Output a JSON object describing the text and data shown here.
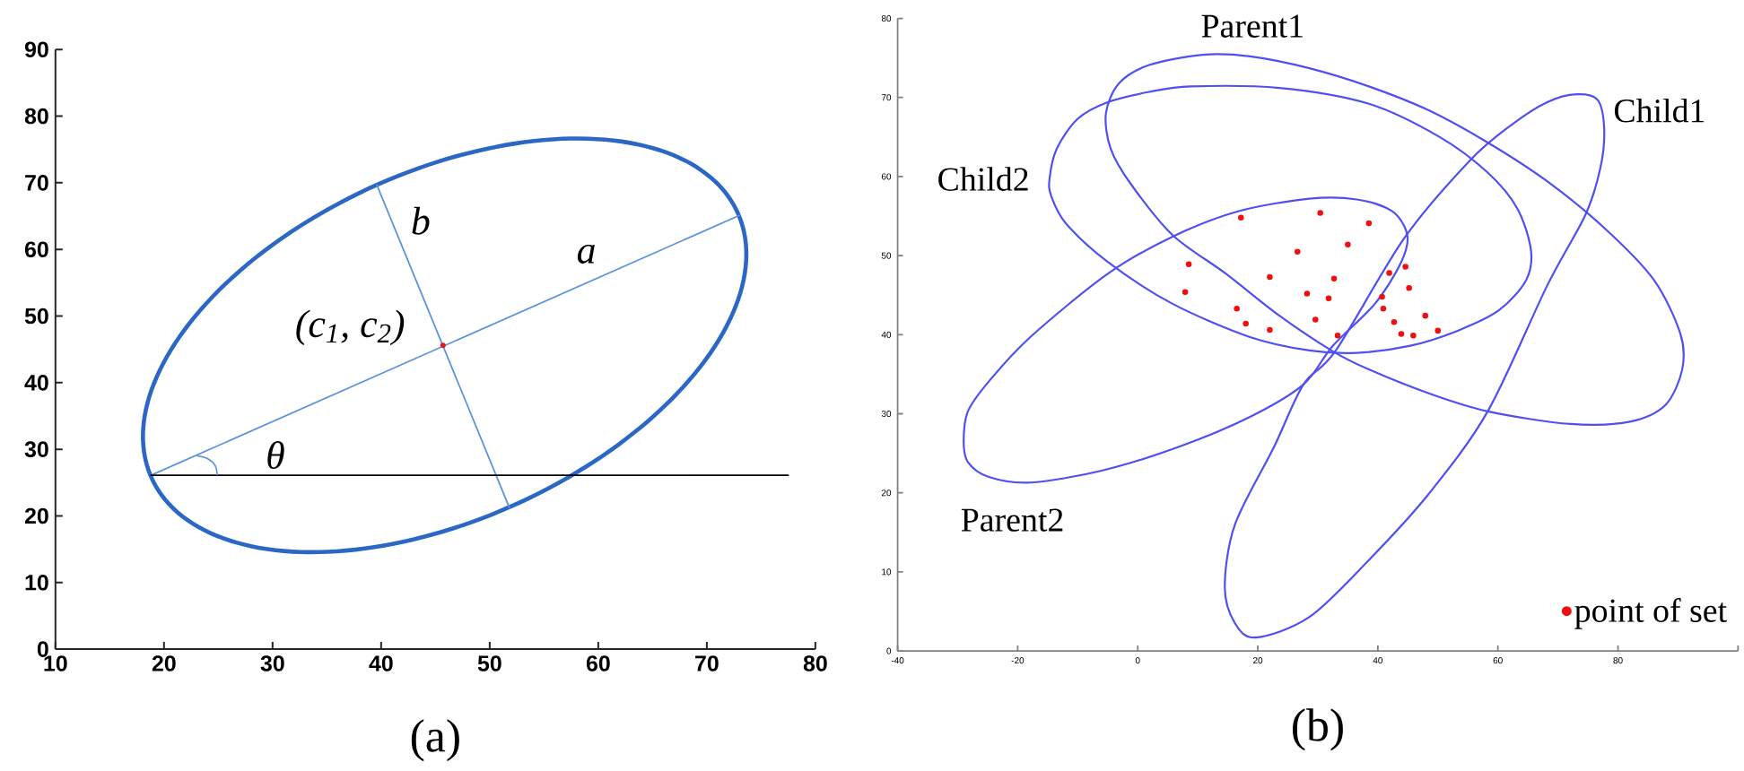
{
  "chart_data": [
    {
      "type": "line",
      "xlim": [
        10,
        80
      ],
      "ylim": [
        0,
        90
      ],
      "xticks": [
        10,
        20,
        30,
        40,
        50,
        60,
        70,
        80
      ],
      "yticks": [
        0,
        10,
        20,
        30,
        40,
        50,
        60,
        70,
        80,
        90
      ],
      "annotations": [
        {
          "text": "b",
          "x": 41.0,
          "y": 64.3
        },
        {
          "text": "a",
          "x": 58.9,
          "y": 55.0
        },
        {
          "text": "(c$_{1}$, c$_{2}$)",
          "x": 45.7,
          "y": 45.6
        },
        {
          "text": "θ",
          "x": 24.0,
          "y": 28.6
        },
        "(a)"
      ],
      "series": [
        {
          "color": "#5b93dc",
          "x": [
            18.8,
            73.0
          ],
          "values": [
            26.1,
            65.1
          ]
        },
        {
          "color": "#5b93dc",
          "x": [
            39.6,
            51.8
          ],
          "values": [
            69.7,
            21.3
          ]
        },
        {
          "color": "#000000",
          "x": [
            18.8,
            77.5
          ],
          "values": [
            26.1,
            26.1
          ]
        },
        {
          "color": "#5b93dc",
          "x": [
            24.9,
            24.7,
            24.0,
            23.1
          ],
          "values": [
            26.2,
            27.6,
            28.6,
            29.0
          ]
        },
        {
          "type": "scatter",
          "color": "#e41a1c",
          "marker": "circle",
          "x": [
            45.7
          ],
          "values": [
            45.6
          ]
        }
      ]
    },
    {
      "type": "scatter",
      "xlim": [
        -40,
        100
      ],
      "ylim": [
        0,
        80
      ],
      "xticks": [
        -40,
        -20,
        0,
        20,
        40,
        60,
        80,
        {
          "value": 100,
          "label": null
        }
      ],
      "yticks": [
        0,
        10,
        20,
        30,
        40,
        50,
        60,
        70,
        80
      ],
      "legend": "bottom right",
      "annotations": [
        "Parent1",
        "Parent2",
        "Child1",
        "Child2",
        "(b)"
      ],
      "series": [
        {
          "name": "point of set",
          "color": "#f01010",
          "marker": "circle",
          "x": [
            17.2,
            30.4,
            38.5,
            35.0,
            26.6,
            8.5,
            44.6,
            22.0,
            32.7,
            41.9,
            7.9,
            28.2,
            45.2,
            31.8,
            40.7,
            16.5,
            40.9,
            47.9,
            29.6,
            18.0,
            42.7,
            22.0,
            33.3,
            43.9,
            45.9,
            50.0
          ],
          "values": [
            54.8,
            55.4,
            54.1,
            51.4,
            50.5,
            48.9,
            48.6,
            47.3,
            47.1,
            47.8,
            45.4,
            45.2,
            45.9,
            44.6,
            44.8,
            43.3,
            43.3,
            42.4,
            41.9,
            41.4,
            41.6,
            40.6,
            39.9,
            40.1,
            39.9,
            40.5
          ]
        }
      ]
    }
  ]
}
